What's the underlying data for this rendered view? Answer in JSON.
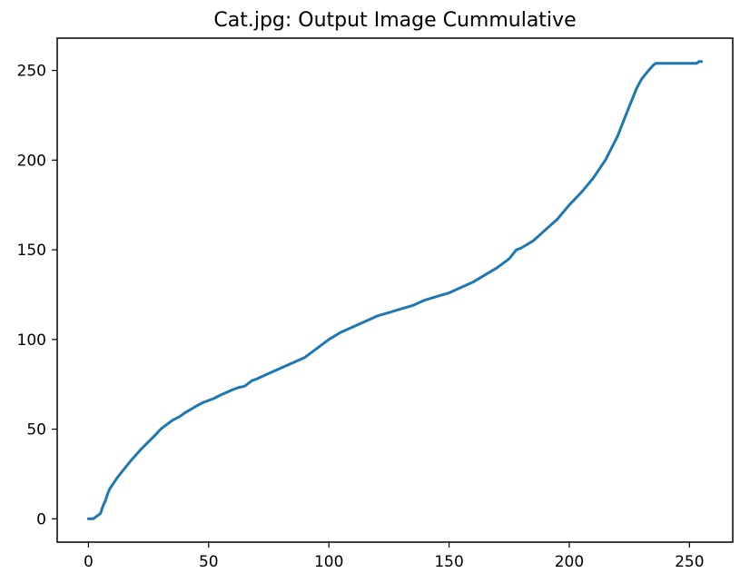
{
  "chart_data": {
    "type": "line",
    "title": "Cat.jpg: Output Image Cummulative",
    "xlabel": "",
    "ylabel": "",
    "xlim": [
      -13,
      268
    ],
    "ylim": [
      -13,
      268
    ],
    "xticks": [
      0,
      50,
      100,
      150,
      200,
      250
    ],
    "yticks": [
      0,
      50,
      100,
      150,
      200,
      250
    ],
    "grid": false,
    "legend": "none",
    "series": [
      {
        "color": "#1f77b4",
        "x": [
          0,
          2,
          3,
          5,
          6,
          7,
          8,
          9,
          10,
          12,
          15,
          18,
          20,
          22,
          25,
          28,
          30,
          35,
          38,
          40,
          45,
          48,
          50,
          52,
          55,
          60,
          62,
          65,
          68,
          70,
          75,
          80,
          85,
          90,
          95,
          100,
          105,
          110,
          115,
          120,
          125,
          130,
          135,
          140,
          145,
          150,
          155,
          160,
          165,
          170,
          175,
          178,
          180,
          185,
          190,
          195,
          200,
          205,
          210,
          215,
          220,
          225,
          228,
          230,
          233,
          235,
          236,
          237,
          240,
          245,
          250,
          253,
          254,
          255
        ],
        "y": [
          0,
          0,
          1,
          3,
          7,
          10,
          14,
          17,
          19,
          23,
          28,
          33,
          36,
          39,
          43,
          47,
          50,
          55,
          57,
          59,
          63,
          65,
          66,
          67,
          69,
          72,
          73,
          74,
          77,
          78,
          81,
          84,
          87,
          90,
          95,
          100,
          104,
          107,
          110,
          113,
          115,
          117,
          119,
          122,
          124,
          126,
          129,
          132,
          136,
          140,
          145,
          150,
          151,
          155,
          161,
          167,
          175,
          182,
          190,
          200,
          213,
          230,
          240,
          245,
          250,
          253,
          254,
          254,
          254,
          254,
          254,
          254,
          255,
          255
        ]
      }
    ]
  }
}
